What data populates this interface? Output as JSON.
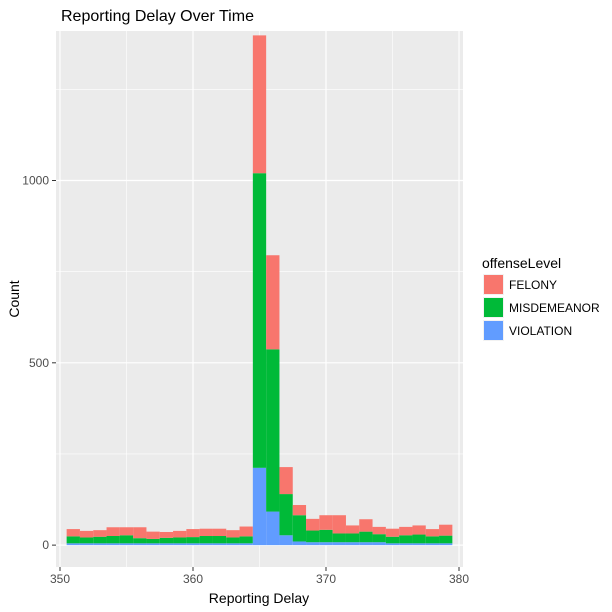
{
  "chart_data": {
    "type": "bar",
    "stacked": true,
    "title": "Reporting Delay Over Time",
    "xlabel": "Reporting Delay",
    "ylabel": "Count",
    "xlim": [
      349.7,
      380.3
    ],
    "ylim": [
      -60,
      1410
    ],
    "x_ticks": [
      350,
      360,
      370,
      380
    ],
    "y_ticks": [
      0,
      500,
      1000
    ],
    "grid": true,
    "legend": {
      "title": "offenseLevel",
      "placement": "right"
    },
    "x": [
      351,
      352,
      353,
      354,
      355,
      356,
      357,
      358,
      359,
      360,
      361,
      362,
      363,
      364,
      365,
      366,
      367,
      368,
      369,
      370,
      371,
      372,
      373,
      374,
      375,
      376,
      377,
      378,
      379
    ],
    "series": [
      {
        "name": "VIOLATION",
        "color": "#619CFF",
        "values": [
          5,
          5,
          5,
          5,
          5,
          5,
          5,
          5,
          5,
          5,
          5,
          5,
          5,
          5,
          212,
          92,
          27,
          10,
          8,
          8,
          8,
          8,
          8,
          8,
          5,
          5,
          5,
          5,
          5
        ]
      },
      {
        "name": "MISDEMEANOR",
        "color": "#00BA38",
        "values": [
          19,
          16,
          18,
          20,
          22,
          14,
          12,
          15,
          16,
          17,
          20,
          20,
          16,
          19,
          808,
          445,
          113,
          72,
          32,
          34,
          24,
          24,
          29,
          22,
          18,
          22,
          24,
          19,
          21
        ]
      },
      {
        "name": "FELONY",
        "color": "#F8766D",
        "values": [
          20,
          18,
          18,
          24,
          22,
          30,
          20,
          16,
          18,
          22,
          20,
          20,
          20,
          27,
          378,
          258,
          74,
          28,
          32,
          40,
          50,
          22,
          34,
          20,
          22,
          23,
          25,
          20,
          30
        ]
      }
    ]
  }
}
